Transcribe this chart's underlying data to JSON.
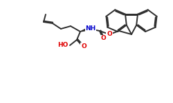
{
  "bg_color": "#ffffff",
  "bond_color": "#2d2d2d",
  "bond_width": 1.4,
  "atom_colors": {
    "O": "#e00000",
    "N": "#0000cc",
    "C": "#2d2d2d"
  },
  "font_size_atom": 6.5,
  "figsize": [
    2.5,
    1.5
  ],
  "dpi": 100
}
